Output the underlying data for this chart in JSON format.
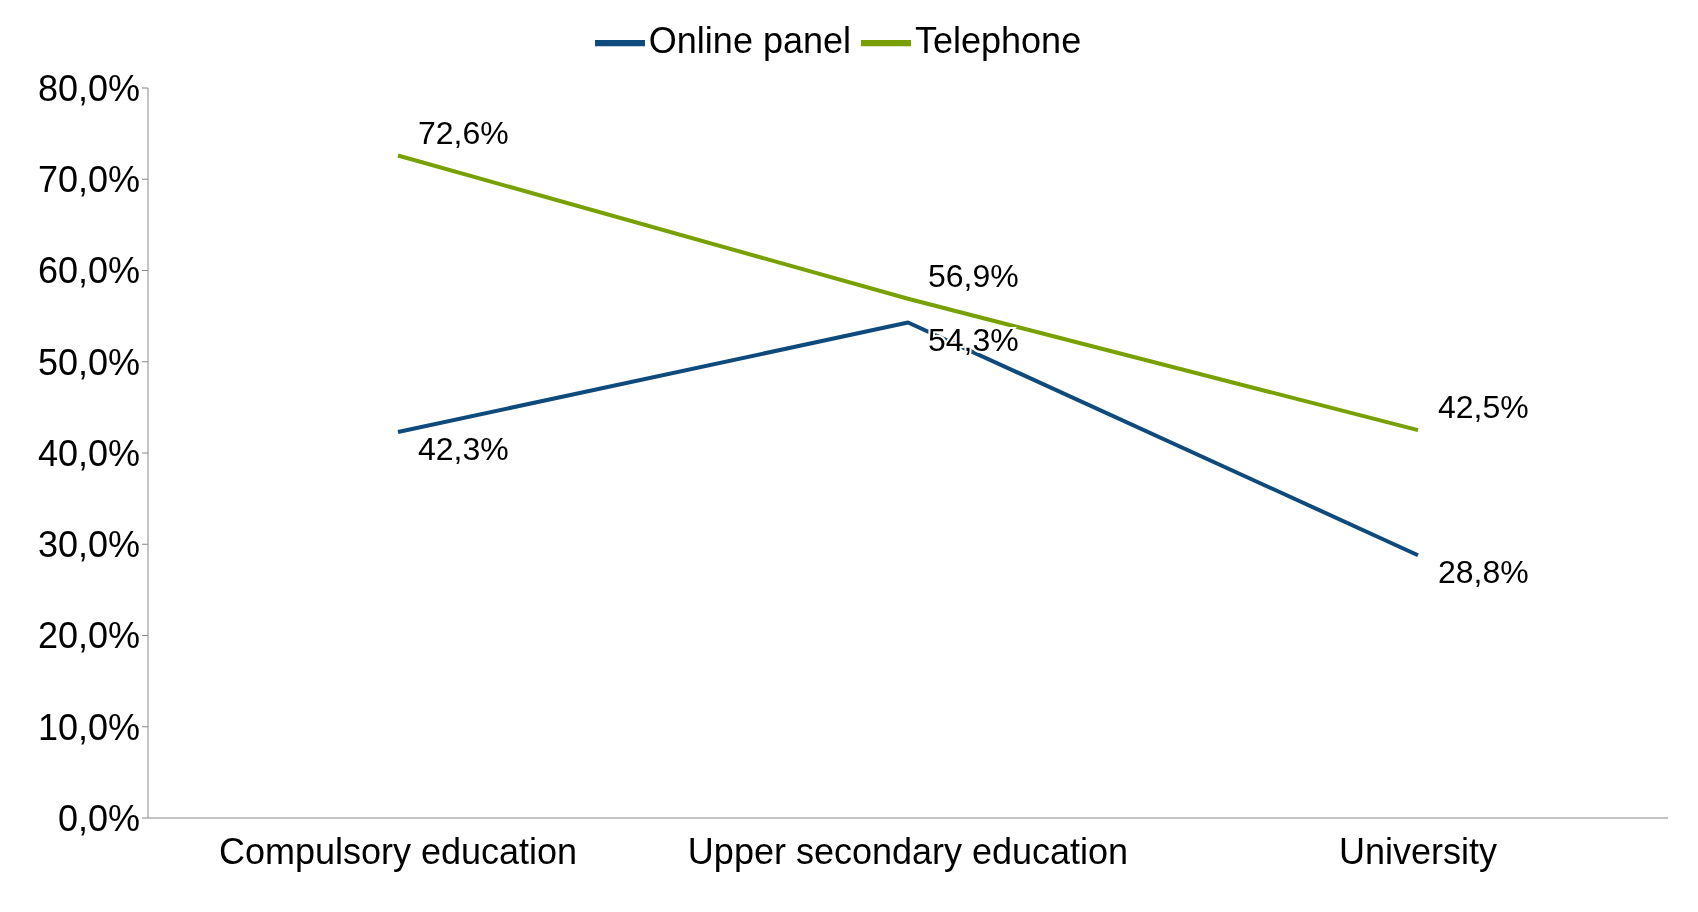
{
  "chart_data": {
    "type": "line",
    "categories": [
      "Compulsory education",
      "Upper secondary education",
      "University"
    ],
    "series": [
      {
        "name": "Online panel",
        "color": "#0e4a7c",
        "values": [
          42.3,
          54.3,
          28.8
        ],
        "value_labels": [
          "42,3%",
          "54,3%",
          "28,8%"
        ]
      },
      {
        "name": "Telephone",
        "color": "#77a000",
        "values": [
          72.6,
          56.9,
          42.5
        ],
        "value_labels": [
          "72,6%",
          "56,9%",
          "42,5%"
        ]
      }
    ],
    "ylim": [
      0,
      80
    ],
    "yticks": [
      {
        "value": 0,
        "label": "0,0%"
      },
      {
        "value": 10,
        "label": "10,0%"
      },
      {
        "value": 20,
        "label": "20,0%"
      },
      {
        "value": 30,
        "label": "30,0%"
      },
      {
        "value": 40,
        "label": "40,0%"
      },
      {
        "value": 50,
        "label": "50,0%"
      },
      {
        "value": 60,
        "label": "60,0%"
      },
      {
        "value": 70,
        "label": "70,0%"
      },
      {
        "value": 80,
        "label": "80,0%"
      }
    ],
    "legend": "top",
    "marker": "none",
    "line_style": "solid"
  }
}
